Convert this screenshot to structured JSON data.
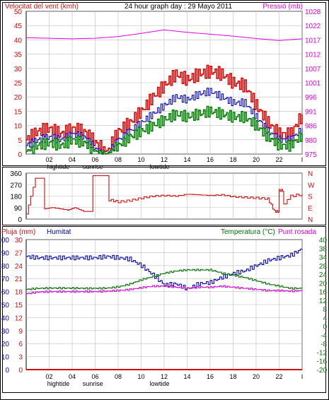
{
  "colors": {
    "wind": "#d01010",
    "gust": "#e00000",
    "avg_wind": "#0000d0",
    "min_wind": "#008000",
    "pressure": "#e000e0",
    "direction": "#d01010",
    "rain": "#d01010",
    "humidity": "#0000c0",
    "temperature": "#007000",
    "dewpoint": "#e000e0",
    "frame": "#000000"
  },
  "chart_data": [
    {
      "type": "line",
      "id": "wind-pressure",
      "title": "24 hour graph day : 29 Mayo 2011",
      "ylabel": "Velocitat del vent (kmh)",
      "y2label": "Pressió (mb)",
      "ylim": [
        0,
        50
      ],
      "y2lim": [
        975,
        1028
      ],
      "yticks": [
        "0",
        "5",
        "10",
        "15",
        "20",
        "25",
        "30",
        "35",
        "40",
        "45",
        "50"
      ],
      "y2ticks": [
        "975",
        "980",
        "986",
        "991",
        "996",
        "1001",
        "1007",
        "1012",
        "1017",
        "1022",
        "1028"
      ],
      "xlim": [
        0,
        24
      ],
      "xticks": [
        "02",
        "04",
        "06",
        "08",
        "10",
        "12",
        "14",
        "16",
        "18",
        "20",
        "22",
        "I"
      ],
      "x_markers": [
        {
          "x": 2.8,
          "label": "hightide"
        },
        {
          "x": 5.8,
          "label": "sunrise"
        },
        {
          "x": 11.6,
          "label": "lowtide"
        }
      ],
      "grid": true,
      "series": [
        {
          "name": "gust",
          "color": "#e00000",
          "x": [
            0,
            1,
            2,
            3,
            4,
            5,
            6,
            7,
            8,
            9,
            10,
            11,
            12,
            13,
            14,
            15,
            16,
            17,
            18,
            19,
            20,
            21,
            22,
            23,
            24
          ],
          "values": [
            5,
            8,
            9,
            7,
            9,
            8,
            4,
            1,
            8,
            11,
            15,
            20,
            24,
            28,
            26,
            28,
            29,
            28,
            25,
            24,
            17,
            11,
            7,
            7,
            14
          ]
        },
        {
          "name": "average",
          "color": "#0000d0",
          "x": [
            0,
            1,
            2,
            3,
            4,
            5,
            6,
            7,
            8,
            9,
            10,
            11,
            12,
            13,
            14,
            15,
            16,
            17,
            18,
            19,
            20,
            21,
            22,
            23,
            24
          ],
          "values": [
            3,
            5,
            6,
            5,
            7,
            6,
            2,
            0,
            5,
            8,
            11,
            14,
            17,
            20,
            19,
            21,
            22,
            20,
            18,
            18,
            13,
            8,
            5,
            5,
            9
          ]
        },
        {
          "name": "lull",
          "color": "#008000",
          "x": [
            0,
            1,
            2,
            3,
            4,
            5,
            6,
            7,
            8,
            9,
            10,
            11,
            12,
            13,
            14,
            15,
            16,
            17,
            18,
            19,
            20,
            21,
            22,
            23,
            24
          ],
          "values": [
            1,
            3,
            4,
            3,
            5,
            4,
            1,
            0,
            3,
            6,
            8,
            10,
            12,
            14,
            13,
            14,
            15,
            14,
            13,
            13,
            10,
            6,
            3,
            3,
            7
          ]
        },
        {
          "name": "pressure",
          "color": "#e000e0",
          "axis": "right",
          "x": [
            0,
            2,
            4,
            6,
            8,
            10,
            12,
            14,
            16,
            18,
            20,
            22,
            24
          ],
          "values": [
            1018.2,
            1018,
            1017.8,
            1018,
            1018.6,
            1019.8,
            1021.1,
            1020.2,
            1019.5,
            1018.8,
            1017.9,
            1017.2,
            1017.8
          ]
        }
      ]
    },
    {
      "type": "line",
      "id": "wind-direction",
      "ylim": [
        0,
        360
      ],
      "yticks": [
        "0",
        "90",
        "180",
        "270",
        "360"
      ],
      "right_labels": [
        "N",
        "W",
        "S",
        "E",
        "N"
      ],
      "xlim": [
        0,
        24
      ],
      "grid": true,
      "series": [
        {
          "name": "direction",
          "color": "#d01010",
          "x": [
            0,
            0.8,
            1.2,
            1.6,
            2.2,
            3.6,
            4.2,
            5,
            5.6,
            5.8,
            7,
            7.2,
            8,
            9,
            10,
            11,
            12,
            13,
            14,
            15,
            16,
            17,
            18,
            19,
            20,
            21,
            21.6,
            22,
            22.4,
            23,
            24
          ],
          "values": [
            40,
            320,
            320,
            80,
            90,
            70,
            90,
            60,
            60,
            340,
            340,
            150,
            135,
            145,
            165,
            180,
            185,
            180,
            195,
            190,
            185,
            190,
            175,
            170,
            165,
            160,
            60,
            225,
            110,
            180,
            195
          ]
        }
      ]
    },
    {
      "type": "line",
      "id": "rain-hum-temp",
      "ylabel": "Pluja (mm)",
      "y2label": "Humitat",
      "y3label": "Temperatura (°C)",
      "y4label": "Punt rosada",
      "ylim": [
        0,
        30
      ],
      "y2lim": [
        0,
        100
      ],
      "y3lim": [
        -20,
        40
      ],
      "rain_ticks": [
        "0",
        "3",
        "6",
        "9",
        "12",
        "15",
        "18",
        "21",
        "24",
        "27",
        "30"
      ],
      "hum_ticks": [
        "0",
        "10",
        "20",
        "30",
        "40",
        "50",
        "60",
        "70",
        "80",
        "90",
        "100"
      ],
      "temp_ticks": [
        "-20",
        "-16",
        "-12",
        "-8",
        "-4",
        "0",
        "4",
        "8",
        "12",
        "16",
        "20",
        "24",
        "28",
        "34",
        "38",
        "40"
      ],
      "xlim": [
        0,
        24
      ],
      "xticks": [
        "02",
        "04",
        "06",
        "08",
        "10",
        "12",
        "14",
        "16",
        "18",
        "20",
        "22",
        "I"
      ],
      "x_markers": [
        {
          "x": 2.8,
          "label": "hightide"
        },
        {
          "x": 5.8,
          "label": "sunrise"
        },
        {
          "x": 11.6,
          "label": "lowtide"
        }
      ],
      "grid": true,
      "series": [
        {
          "name": "rain",
          "color": "#d01010",
          "axis": "rain",
          "x": [
            0,
            24
          ],
          "values": [
            0,
            0
          ]
        },
        {
          "name": "humidity",
          "color": "#0000c0",
          "axis": "hum",
          "x": [
            0,
            1,
            2,
            3,
            4,
            5,
            6,
            7,
            8,
            9,
            10,
            11,
            12,
            13,
            14,
            15,
            16,
            17,
            18,
            19,
            20,
            21,
            22,
            23,
            24
          ],
          "values": [
            87,
            86,
            86,
            86,
            86,
            86,
            86,
            87,
            86,
            85,
            80,
            73,
            65,
            66,
            62,
            66,
            67,
            71,
            74,
            76,
            80,
            84,
            86,
            88,
            93
          ]
        },
        {
          "name": "temperature",
          "color": "#007000",
          "axis": "temp",
          "x": [
            0,
            1,
            2,
            3,
            4,
            5,
            6,
            7,
            8,
            9,
            10,
            11,
            12,
            13,
            14,
            15,
            16,
            17,
            18,
            19,
            20,
            21,
            22,
            23,
            24
          ],
          "values": [
            17,
            17.5,
            17.6,
            17.6,
            17.6,
            17.5,
            17.5,
            17.6,
            18.2,
            19.5,
            21.5,
            23,
            24.5,
            25.5,
            26,
            26,
            26,
            24.5,
            23.5,
            22.5,
            21,
            19.5,
            18.5,
            17.5,
            17.5
          ]
        },
        {
          "name": "dewpoint",
          "color": "#e000e0",
          "axis": "temp",
          "x": [
            0,
            1,
            2,
            3,
            4,
            5,
            6,
            7,
            8,
            9,
            10,
            11,
            12,
            13,
            14,
            15,
            16,
            17,
            18,
            19,
            20,
            21,
            22,
            23,
            24
          ],
          "values": [
            15,
            15.8,
            16,
            16,
            16,
            16,
            16,
            16.2,
            16.5,
            17,
            17.8,
            18.5,
            18.5,
            18,
            17.5,
            18,
            18,
            18.5,
            18,
            17.5,
            17,
            16.5,
            16.5,
            16.2,
            16.5
          ]
        }
      ]
    }
  ]
}
